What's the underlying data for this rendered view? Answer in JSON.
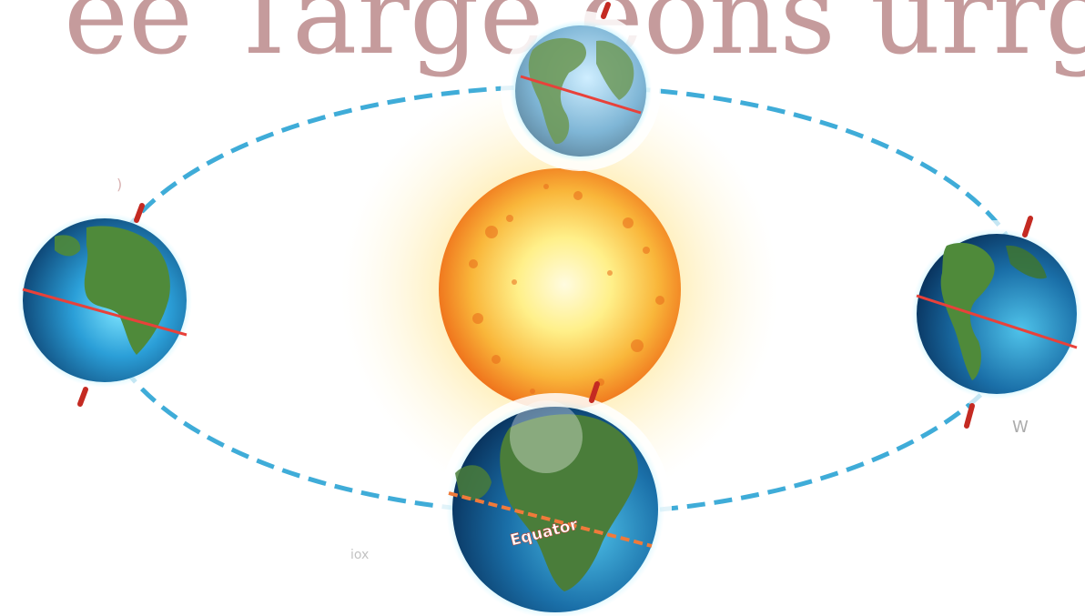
{
  "diagram": {
    "equator_label": "Equator",
    "colors": {
      "orbit": "#2aa3d4",
      "axis": "#c42a22",
      "equator": "#e8413a",
      "ocean": "#1f7fbf",
      "land": "#4f8a3a",
      "sun_core": "#fff6a0",
      "sun_edge": "#f07a1a"
    }
  }
}
